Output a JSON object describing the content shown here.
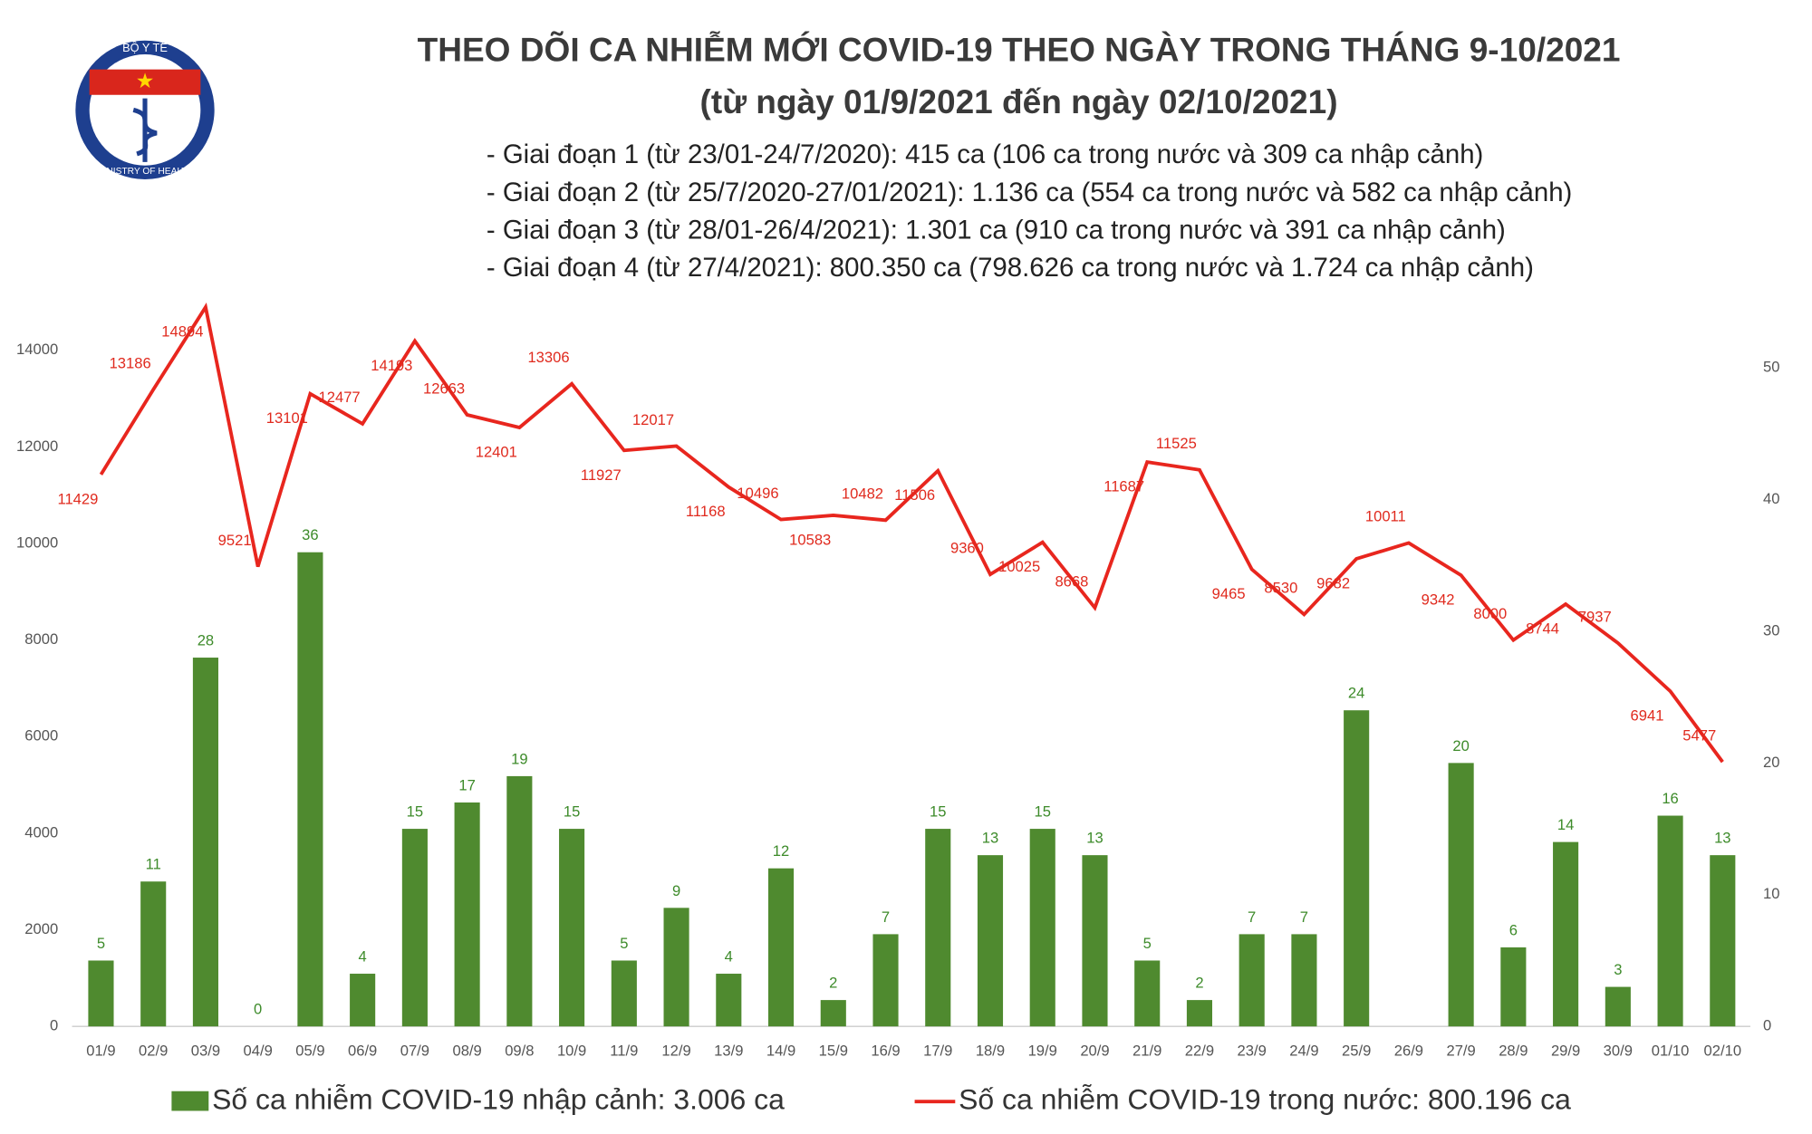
{
  "logo": {
    "top": "BỘ Y TẾ",
    "bottom": "MINISTRY OF HEALTH"
  },
  "chart_data": {
    "type": "bar-line",
    "title": "THEO DÕI CA NHIỄM MỚI COVID-19 THEO NGÀY TRONG THÁNG 9-10/2021",
    "subtitle": "(từ ngày 01/9/2021 đến ngày 02/10/2021)",
    "annotations": [
      "- Giai đoạn 1 (từ 23/01-24/7/2020): 415 ca (106 ca trong nước và 309 ca nhập cảnh)",
      "- Giai đoạn 2 (từ 25/7/2020-27/01/2021): 1.136 ca (554 ca trong nước và 582 ca nhập cảnh)",
      "- Giai đoạn 3 (từ 28/01-26/4/2021): 1.301 ca (910 ca trong nước và 391 ca nhập cảnh)",
      "- Giai đoạn 4 (từ 27/4/2021): 800.350 ca (798.626 ca trong nước và 1.724 ca nhập cảnh)"
    ],
    "categories": [
      "01/9",
      "02/9",
      "03/9",
      "04/9",
      "05/9",
      "06/9",
      "07/9",
      "08/9",
      "09/8",
      "10/9",
      "11/9",
      "12/9",
      "13/9",
      "14/9",
      "15/9",
      "16/9",
      "17/9",
      "18/9",
      "19/9",
      "20/9",
      "21/9",
      "22/9",
      "23/9",
      "24/9",
      "25/9",
      "26/9",
      "27/9",
      "28/9",
      "29/9",
      "30/9",
      "01/10",
      "02/10"
    ],
    "series": [
      {
        "name": "Số ca nhiễm COVID-19 nhập cảnh: 3.006 ca",
        "type": "bar",
        "axis": "y2",
        "color": "#4f8a2f",
        "values": [
          5,
          11,
          28,
          0,
          36,
          4,
          15,
          17,
          19,
          15,
          5,
          9,
          4,
          12,
          2,
          7,
          15,
          13,
          15,
          13,
          5,
          2,
          7,
          7,
          24,
          null,
          20,
          6,
          14,
          3,
          16,
          13
        ]
      },
      {
        "name": "Số ca nhiễm COVID-19 trong nước: 800.196 ca",
        "type": "line",
        "color": "#e8261e",
        "values": [
          11429,
          13186,
          14894,
          9521,
          13101,
          12477,
          14193,
          12663,
          12401,
          13306,
          11927,
          12017,
          11168,
          10496,
          10583,
          10482,
          11506,
          9360,
          10025,
          8668,
          11687,
          11525,
          9465,
          8530,
          9682,
          10011,
          9342,
          8000,
          8744,
          7937,
          6941,
          5477
        ]
      }
    ],
    "ylim": [
      0,
      15000
    ],
    "yticks": [
      0,
      2000,
      4000,
      6000,
      8000,
      10000,
      12000,
      14000
    ],
    "y2lim": [
      0,
      55
    ],
    "y2ticks": [
      0,
      10,
      20,
      30,
      40,
      50
    ],
    "grid": false,
    "legend": "bottom"
  }
}
